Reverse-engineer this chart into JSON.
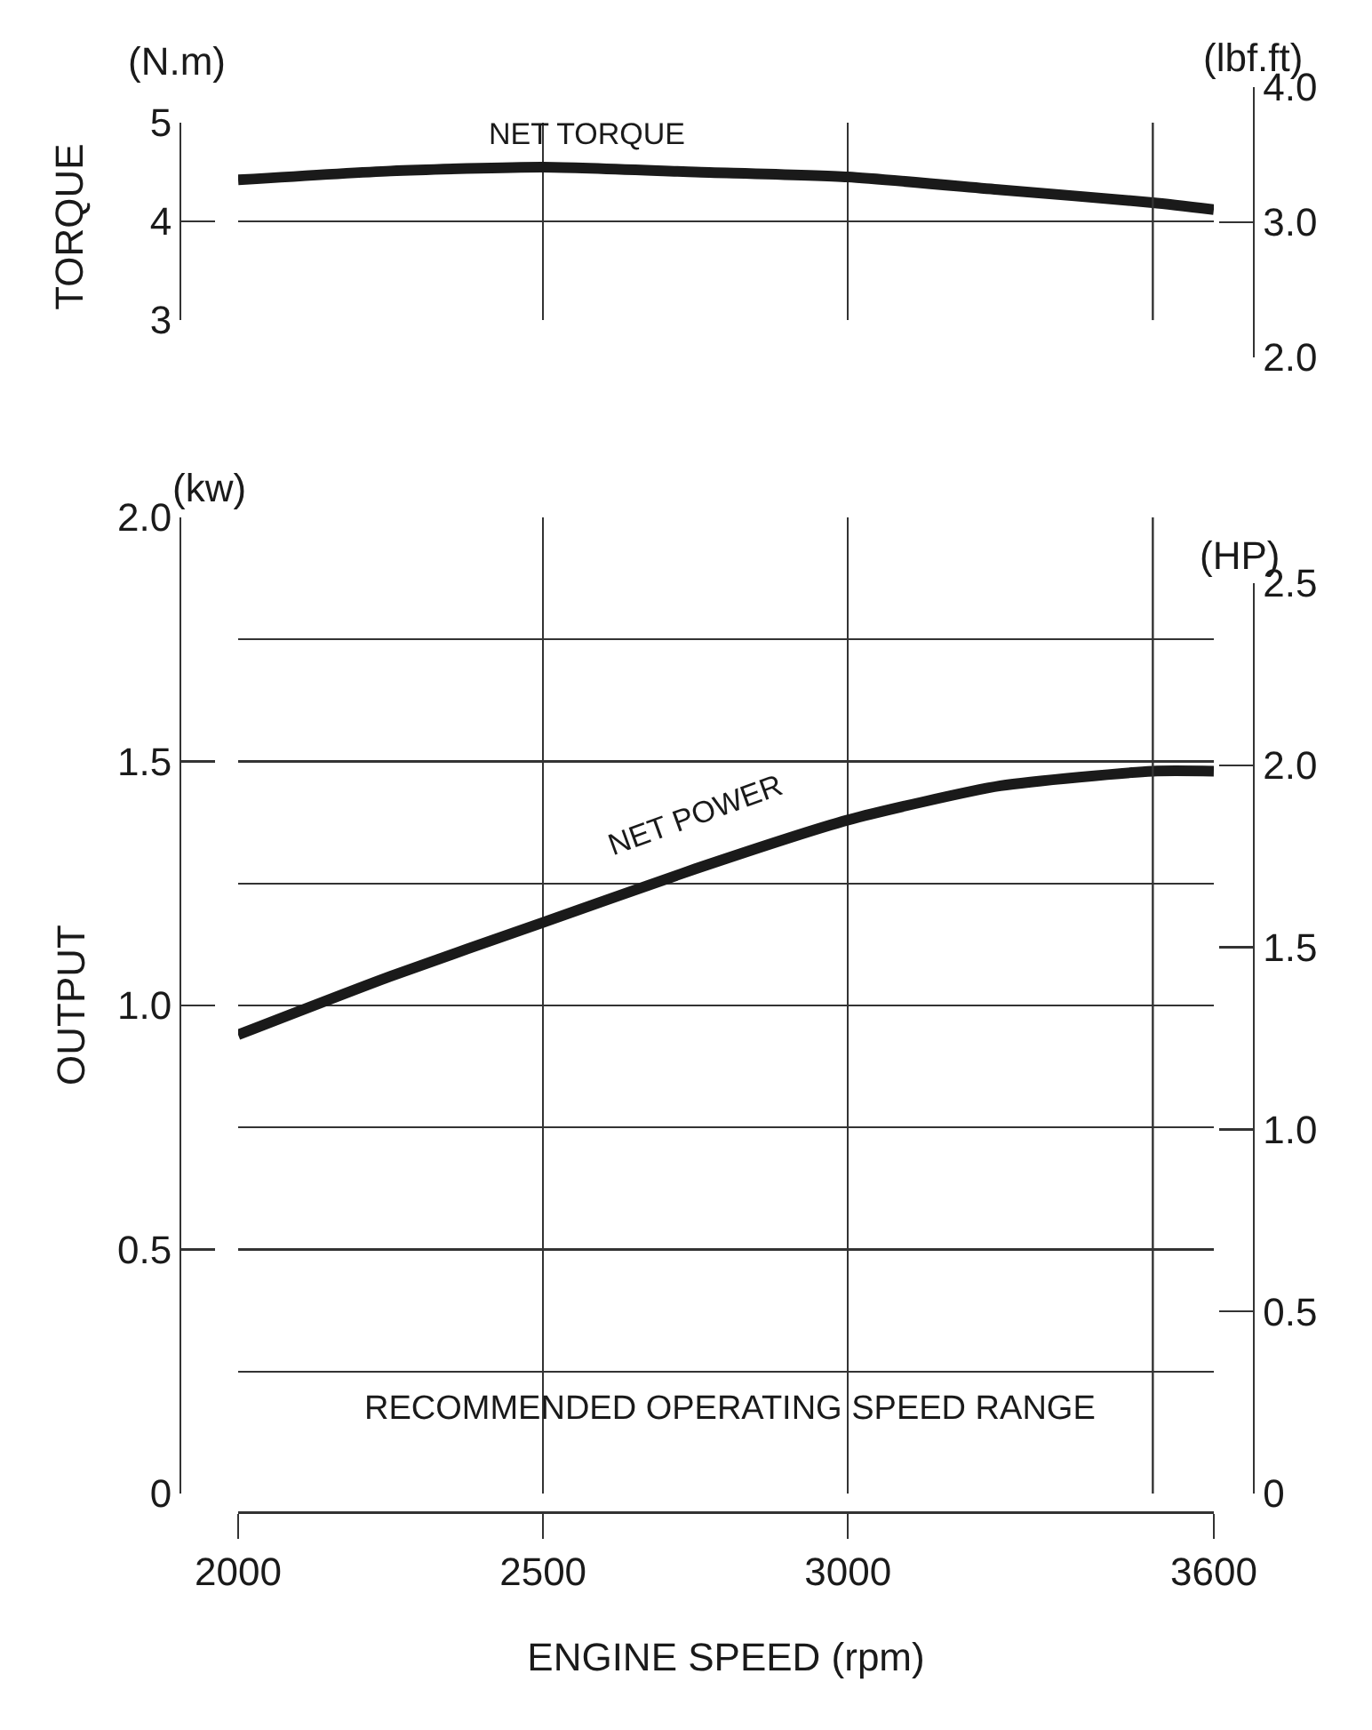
{
  "chart_data": [
    {
      "type": "line",
      "ylabel": "TORQUE",
      "y2label": "(lbf.ft)",
      "annotations": [
        "(N.m)"
      ],
      "x": [
        2000,
        2250,
        2500,
        2750,
        3000,
        3250,
        3500,
        3600
      ],
      "xlim": [
        2000,
        3600
      ],
      "xticks": [
        2000,
        2500,
        3000,
        3600
      ],
      "ylim": [
        3,
        5
      ],
      "yticks": [
        3,
        4,
        5
      ],
      "y2lim": [
        2,
        4
      ],
      "y2ticks": [
        {
          "value": 2,
          "label": "2.0"
        },
        {
          "value": 3,
          "label": "3.0"
        },
        {
          "value": 4,
          "label": "4.0"
        }
      ],
      "series": [
        {
          "name": "NET TORQUE",
          "color": "#1a1a1a",
          "values": [
            4.42,
            4.51,
            4.55,
            4.5,
            4.45,
            4.32,
            4.19,
            4.12
          ]
        }
      ],
      "ref_lines": [
        {
          "axis": "x",
          "value": 3500,
          "color": "#333333"
        }
      ],
      "grid": true,
      "tick_labels": "y"
    },
    {
      "type": "line",
      "ylabel": "OUTPUT",
      "y2label": "(HP)",
      "xlabel": "ENGINE SPEED (rpm)",
      "annotations": [
        "(kw)",
        "RECOMMENDED OPERATING SPEED RANGE"
      ],
      "x": [
        2000,
        2250,
        2500,
        2750,
        3000,
        3250,
        3500,
        3600
      ],
      "xlim": [
        2000,
        3600
      ],
      "xticks": [
        2000,
        2500,
        3000,
        3600
      ],
      "ylim": [
        0,
        2
      ],
      "yticks": [
        0,
        {
          "value": 0.25,
          "label": null
        },
        0.5,
        {
          "value": 0.75,
          "label": null
        },
        {
          "value": 1,
          "label": "1.0"
        },
        {
          "value": 1.25,
          "label": null
        },
        1.5,
        {
          "value": 1.75,
          "label": null
        },
        {
          "value": 2,
          "label": "2.0"
        }
      ],
      "y2lim": [
        0,
        2.5
      ],
      "y2ticks": [
        0,
        0.5,
        {
          "value": 1,
          "label": "1.0"
        },
        1.5,
        {
          "value": 2,
          "label": "2.0"
        },
        2.5
      ],
      "series": [
        {
          "name": "NET POWER",
          "color": "#1a1a1a",
          "values": [
            0.94,
            1.06,
            1.17,
            1.28,
            1.38,
            1.45,
            1.48,
            1.48
          ]
        }
      ],
      "ref_lines": [
        {
          "axis": "x",
          "value": 3500,
          "color": "#333333"
        }
      ],
      "grid": true
    }
  ]
}
